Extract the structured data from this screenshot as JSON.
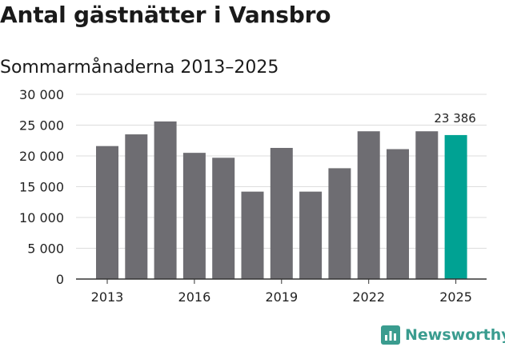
{
  "header": {
    "title": "Antal gästnätter i Vansbro",
    "subtitle": "Sommarmånaderna 2013–2025"
  },
  "brand": {
    "label": "Newsworthy",
    "icon": "newsworthy-bar-chart-logo",
    "color": "#3a9c8f"
  },
  "chart_data": {
    "type": "bar",
    "categories": [
      "2013",
      "2014",
      "2015",
      "2016",
      "2017",
      "2018",
      "2019",
      "2020",
      "2021",
      "2022",
      "2023",
      "2024",
      "2025"
    ],
    "values": [
      21600,
      23500,
      25600,
      20500,
      19700,
      14200,
      21300,
      14200,
      18000,
      24000,
      21100,
      24000,
      23386
    ],
    "highlight_index": 12,
    "highlight_label": "23 386",
    "x_tick_labels": [
      "2013",
      "2016",
      "2019",
      "2022",
      "2025"
    ],
    "y_tick_labels": [
      "0",
      "5 000",
      "10 000",
      "15 000",
      "20 000",
      "25 000",
      "30 000"
    ],
    "ylim": [
      0,
      30000
    ],
    "grid": true,
    "colors": {
      "bar": "#6e6d72",
      "highlight": "#00a293",
      "grid": "#dddddd",
      "axis": "#333333"
    }
  }
}
